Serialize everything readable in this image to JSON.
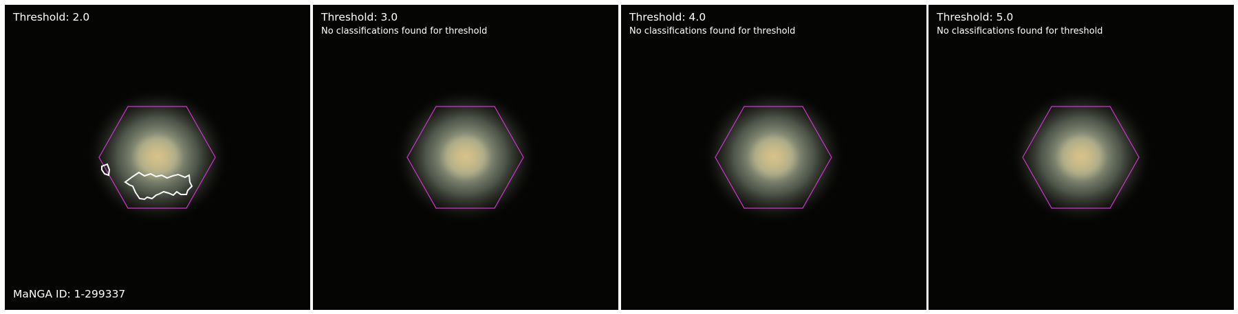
{
  "panels": [
    {
      "title": "Threshold: 2.0",
      "message": "",
      "has_contour": true
    },
    {
      "title": "Threshold: 3.0",
      "message": "No classifications found for threshold",
      "has_contour": false
    },
    {
      "title": "Threshold: 4.0",
      "message": "No classifications found for threshold",
      "has_contour": false
    },
    {
      "title": "Threshold: 5.0",
      "message": "No classifications found for threshold",
      "has_contour": false
    }
  ],
  "manga_id": "MaNGA ID: 1-299337",
  "colors": {
    "background": "#050504",
    "hexagon": "#d633d6",
    "contour": "#ffffff",
    "galaxy_core": "#c9b582",
    "galaxy_halo": "#8a9a8a"
  }
}
